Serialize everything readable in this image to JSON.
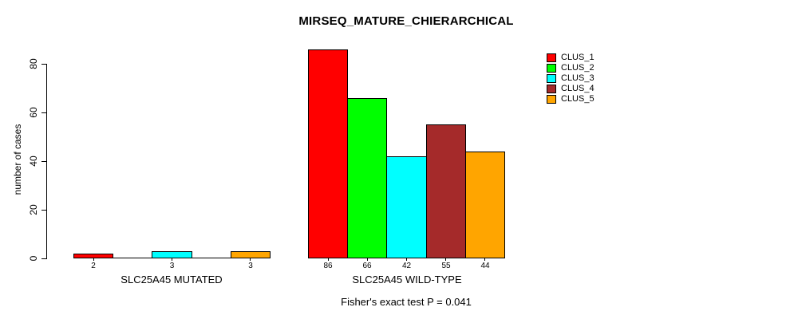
{
  "chart_data": {
    "type": "bar",
    "title": "MIRSEQ_MATURE_CHIERARCHICAL",
    "ylabel": "number of cases",
    "xlabel": "",
    "ylim": [
      0,
      80
    ],
    "yticks": [
      0,
      20,
      40,
      60,
      80
    ],
    "grid": false,
    "legend_position": "right",
    "series_colors": [
      "#FF0000",
      "#00FF00",
      "#00FFFF",
      "#A52A2A",
      "#FFA500"
    ],
    "legend": [
      {
        "label": "CLUS_1",
        "color": "#FF0000"
      },
      {
        "label": "CLUS_2",
        "color": "#00FF00"
      },
      {
        "label": "CLUS_3",
        "color": "#00FFFF"
      },
      {
        "label": "CLUS_4",
        "color": "#A52A2A"
      },
      {
        "label": "CLUS_5",
        "color": "#FFA500"
      }
    ],
    "groups": [
      {
        "label": "SLC25A45 MUTATED",
        "values": [
          2,
          0,
          3,
          0,
          3
        ],
        "bar_labels": [
          "2",
          "",
          "3",
          "",
          "3"
        ]
      },
      {
        "label": "SLC25A45 WILD-TYPE",
        "values": [
          86,
          66,
          42,
          55,
          44
        ],
        "bar_labels": [
          "86",
          "66",
          "42",
          "55",
          "44"
        ]
      }
    ],
    "annotation": "Fisher's exact test P = 0.041"
  }
}
